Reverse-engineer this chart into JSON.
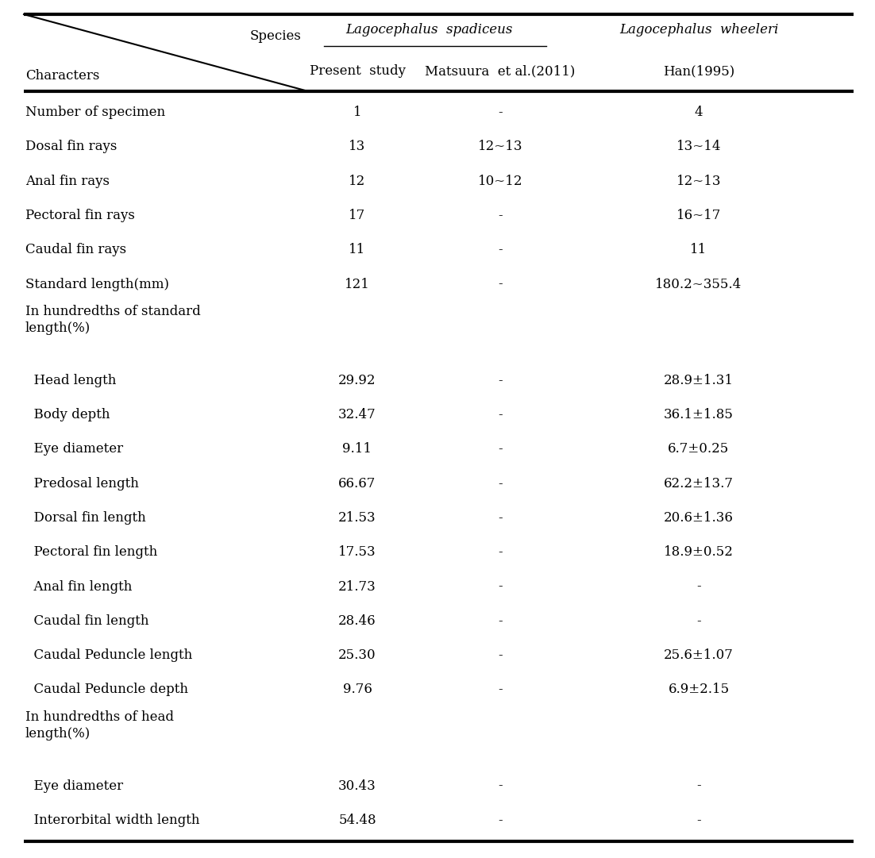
{
  "header_species_label": "Species",
  "header_characters_label": "Characters",
  "col1_header": "Lagocephalus  spadiceus",
  "col2_header": "Lagocephalus  wheeleri",
  "sub_col1": "Present  study",
  "sub_col2": "Matsuura  et al.(2011)",
  "sub_col3": "Han(1995)",
  "rows": [
    {
      "char": "Number of specimen",
      "v1": "1",
      "v2": "-",
      "v3": "4",
      "section": false
    },
    {
      "char": "Dosal fin rays",
      "v1": "13",
      "v2": "12~13",
      "v3": "13~14",
      "section": false
    },
    {
      "char": "Anal fin rays",
      "v1": "12",
      "v2": "10~12",
      "v3": "12~13",
      "section": false
    },
    {
      "char": "Pectoral fin rays",
      "v1": "17",
      "v2": "-",
      "v3": "16~17",
      "section": false
    },
    {
      "char": "Caudal fin rays",
      "v1": "11",
      "v2": "-",
      "v3": "11",
      "section": false
    },
    {
      "char": "Standard length(mm)",
      "v1": "121",
      "v2": "-",
      "v3": "180.2~355.4",
      "section": false
    },
    {
      "char": "In hundredths of standard\nlength(%)",
      "v1": "",
      "v2": "",
      "v3": "",
      "section": true
    },
    {
      "char": "  Head length",
      "v1": "29.92",
      "v2": "-",
      "v3": "28.9±1.31",
      "section": false
    },
    {
      "char": "  Body depth",
      "v1": "32.47",
      "v2": "-",
      "v3": "36.1±1.85",
      "section": false
    },
    {
      "char": "  Eye diameter",
      "v1": "9.11",
      "v2": "-",
      "v3": "6.7±0.25",
      "section": false
    },
    {
      "char": "  Predosal length",
      "v1": "66.67",
      "v2": "-",
      "v3": "62.2±13.7",
      "section": false
    },
    {
      "char": "  Dorsal fin length",
      "v1": "21.53",
      "v2": "-",
      "v3": "20.6±1.36",
      "section": false
    },
    {
      "char": "  Pectoral fin length",
      "v1": "17.53",
      "v2": "-",
      "v3": "18.9±0.52",
      "section": false
    },
    {
      "char": "  Anal fin length",
      "v1": "21.73",
      "v2": "-",
      "v3": "-",
      "section": false
    },
    {
      "char": "  Caudal fin length",
      "v1": "28.46",
      "v2": "-",
      "v3": "-",
      "section": false
    },
    {
      "char": "  Caudal Peduncle length",
      "v1": "25.30",
      "v2": "-",
      "v3": "25.6±1.07",
      "section": false
    },
    {
      "char": "  Caudal Peduncle depth",
      "v1": "9.76",
      "v2": "-",
      "v3": "6.9±2.15",
      "section": false
    },
    {
      "char": "In hundredths of head\nlength(%)",
      "v1": "",
      "v2": "",
      "v3": "",
      "section": true
    },
    {
      "char": "  Eye diameter",
      "v1": "30.43",
      "v2": "-",
      "v3": "-",
      "section": false
    },
    {
      "char": "  Interorbital width length",
      "v1": "54.48",
      "v2": "-",
      "v3": "-",
      "section": false
    }
  ],
  "text_color": "#000000",
  "bg_color": "#ffffff",
  "line_color": "#000000",
  "font_size": 12,
  "header_font_size": 12
}
